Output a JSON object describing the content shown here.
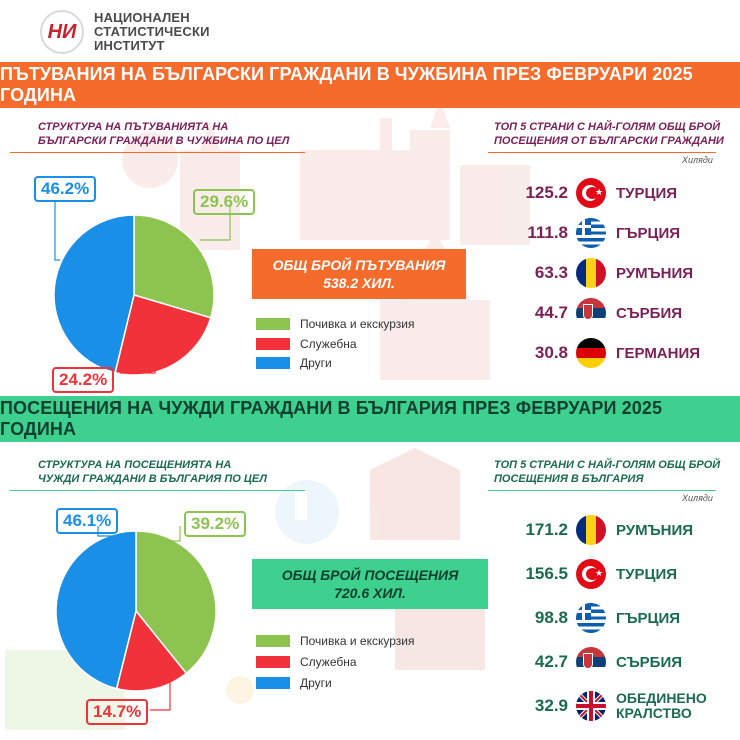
{
  "header": {
    "logo_mark": "НИ",
    "org_name_lines": [
      "НАЦИОНАЛЕН",
      "СТАТИСТИЧЕСКИ",
      "ИНСТИТУТ"
    ]
  },
  "colors": {
    "orange_banner": "#f46b2c",
    "green_banner": "#3ed08f",
    "purple_text": "#7b1f57",
    "green_text": "#1a6b4f",
    "pie_green": "#8dc34f",
    "pie_red": "#f2323a",
    "pie_blue": "#1a8fe8"
  },
  "chart_data": [
    {
      "type": "pie",
      "title": "ПЪТУВАНИЯ НА БЪЛГАРСКИ ГРАЖДАНИ В ЧУЖБИНА ПРЕЗ ФЕВРУАРИ 2025 ГОДИНА",
      "subtitle_lines": [
        "СТРУКТУРА НА ПЪТУВАНИЯТА НА",
        "БЪЛГАРСКИ ГРАЖДАНИ В ЧУЖБИНА ПО ЦЕЛ"
      ],
      "slices": [
        {
          "label": "Почивка и екскурзия",
          "value": 29.6,
          "display": "29.6%",
          "color": "#8dc34f"
        },
        {
          "label": "Служебна",
          "value": 24.2,
          "display": "24.2%",
          "color": "#f2323a"
        },
        {
          "label": "Други",
          "value": 46.2,
          "display": "46.2%",
          "color": "#1a8fe8"
        }
      ],
      "total_label_lines": [
        "ОБЩ БРОЙ ПЪТУВАНИЯ",
        "538.2 ХИЛ."
      ]
    },
    {
      "type": "table",
      "title_lines": [
        "ТОП 5 СТРАНИ С НАЙ-ГОЛЯМ ОБЩ БРОЙ",
        "ПОСЕЩЕНИЯ ОТ БЪЛГАРСКИ ГРАЖДАНИ"
      ],
      "unit": "Хиляди",
      "rows": [
        {
          "value": "125.2",
          "country": "ТУРЦИЯ",
          "flag": "turkey"
        },
        {
          "value": "111.8",
          "country": "ГЪРЦИЯ",
          "flag": "greece"
        },
        {
          "value": "63.3",
          "country": "РУМЪНИЯ",
          "flag": "romania"
        },
        {
          "value": "44.7",
          "country": "СЪРБИЯ",
          "flag": "serbia"
        },
        {
          "value": "30.8",
          "country": "ГЕРМАНИЯ",
          "flag": "germany"
        }
      ]
    },
    {
      "type": "pie",
      "title": "ПОСЕЩЕНИЯ НА ЧУЖДИ ГРАЖДАНИ В БЪЛГАРИЯ ПРЕЗ ФЕВРУАРИ 2025 ГОДИНА",
      "subtitle_lines": [
        "СТРУКТУРА НА ПОСЕЩЕНИЯТА НА",
        "ЧУЖДИ ГРАЖДАНИ В БЪЛГАРИЯ ПО ЦЕЛ"
      ],
      "slices": [
        {
          "label": "Почивка и екскурзия",
          "value": 39.2,
          "display": "39.2%",
          "color": "#8dc34f"
        },
        {
          "label": "Служебна",
          "value": 14.7,
          "display": "14.7%",
          "color": "#f2323a"
        },
        {
          "label": "Други",
          "value": 46.1,
          "display": "46.1%",
          "color": "#1a8fe8"
        }
      ],
      "total_label_lines": [
        "ОБЩ БРОЙ ПОСЕЩЕНИЯ",
        "720.6 ХИЛ."
      ]
    },
    {
      "type": "table",
      "title_lines": [
        "ТОП 5 СТРАНИ С НАЙ-ГОЛЯМ ОБЩ БРОЙ",
        "ПОСЕЩЕНИЯ В БЪЛГАРИЯ"
      ],
      "unit": "Хиляди",
      "rows": [
        {
          "value": "171.2",
          "country": "РУМЪНИЯ",
          "flag": "romania"
        },
        {
          "value": "156.5",
          "country": "ТУРЦИЯ",
          "flag": "turkey"
        },
        {
          "value": "98.8",
          "country": "ГЪРЦИЯ",
          "flag": "greece"
        },
        {
          "value": "42.7",
          "country": "СЪРБИЯ",
          "flag": "serbia"
        },
        {
          "value": "32.9",
          "country": "ОБЕДИНЕНО КРАЛСТВО",
          "country_lines": [
            "ОБЕДИНЕНО",
            "КРАЛСТВО"
          ],
          "flag": "united-kingdom"
        }
      ]
    }
  ]
}
